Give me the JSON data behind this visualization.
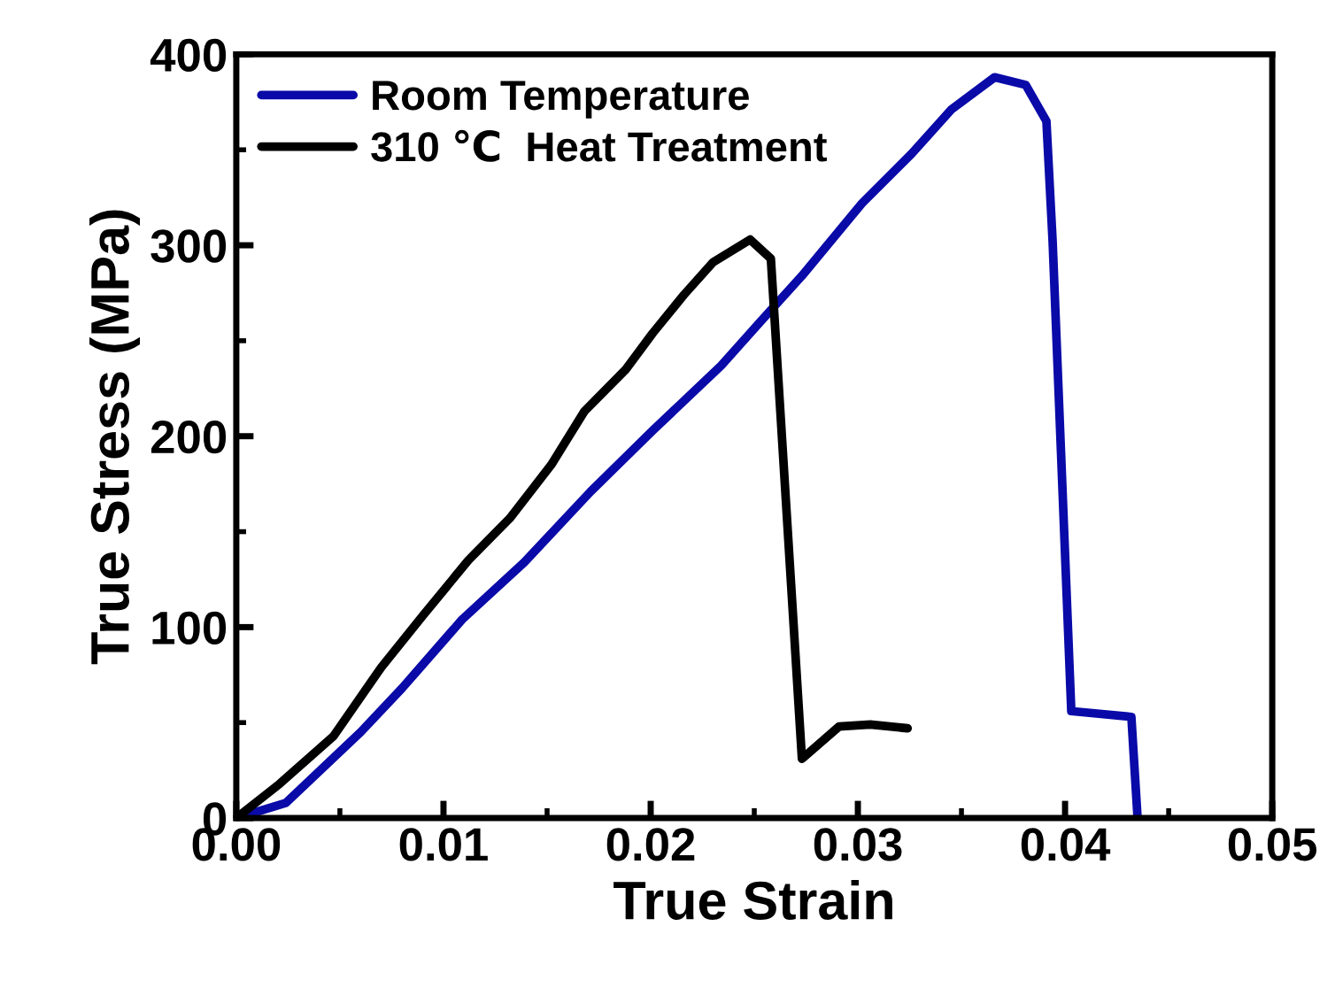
{
  "chart_data": {
    "type": "line",
    "xlabel": "True Strain",
    "ylabel": "True Stress (MPa)",
    "xlim": [
      0,
      0.05
    ],
    "ylim": [
      0,
      400
    ],
    "xticks": [
      {
        "value": 0,
        "label": "0.00"
      },
      {
        "value": 0.01,
        "label": "0.01"
      },
      {
        "value": 0.02,
        "label": "0.02"
      },
      {
        "value": 0.03,
        "label": "0.03"
      },
      {
        "value": 0.04,
        "label": "0.04"
      },
      {
        "value": 0.05,
        "label": "0.05"
      }
    ],
    "yticks": [
      0,
      100,
      200,
      300,
      400
    ],
    "legend": "top left",
    "grid": false,
    "series": [
      {
        "name": "Room Temperature",
        "color": "#0a0aa8",
        "x": [
          0,
          0.0024,
          0.006,
          0.008,
          0.0109,
          0.0139,
          0.0171,
          0.0201,
          0.0234,
          0.0253,
          0.0273,
          0.0302,
          0.0326,
          0.0345,
          0.0366,
          0.0381,
          0.0391,
          0.0394,
          0.0403,
          0.0432,
          0.0435
        ],
        "values": [
          0,
          8,
          45,
          68,
          104,
          134,
          171,
          203,
          237,
          260,
          284,
          322,
          348,
          371,
          388,
          384,
          365,
          302,
          56,
          53,
          0
        ]
      },
      {
        "name": "310 ℃  Heat Treatment",
        "color": "#000000",
        "x": [
          0,
          0.0021,
          0.0047,
          0.007,
          0.009,
          0.0112,
          0.0132,
          0.0152,
          0.0168,
          0.0188,
          0.0201,
          0.0216,
          0.023,
          0.0248,
          0.0258,
          0.0273,
          0.0291,
          0.0306,
          0.0324
        ],
        "values": [
          0,
          18,
          43,
          79,
          106,
          135,
          157,
          185,
          213,
          235,
          254,
          274,
          291,
          303,
          293,
          31,
          48,
          49,
          47
        ]
      }
    ]
  }
}
